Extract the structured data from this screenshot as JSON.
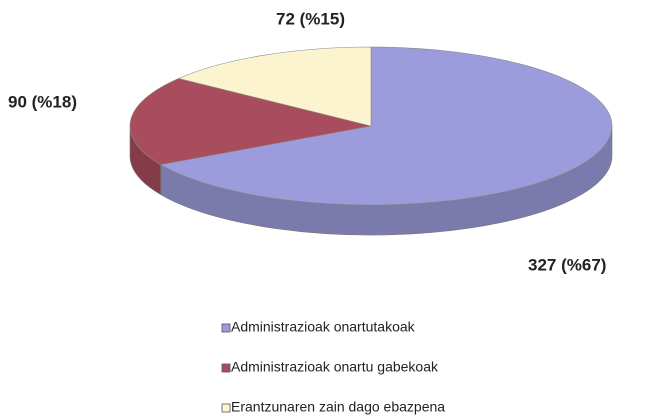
{
  "chart_data": {
    "type": "pie",
    "categories": [
      "Administrazioak onartutakoak",
      "Administrazioak onartu gabekoak",
      "Erantzunaren zain dago ebazpena"
    ],
    "values": [
      327,
      90,
      72
    ],
    "value_labels": [
      "327 (%67)",
      "90 (%18)",
      "72 (%15)"
    ],
    "colors": [
      "#9c9cdc",
      "#a94d5e",
      "#fbf4cf"
    ],
    "legend": "bottom"
  }
}
